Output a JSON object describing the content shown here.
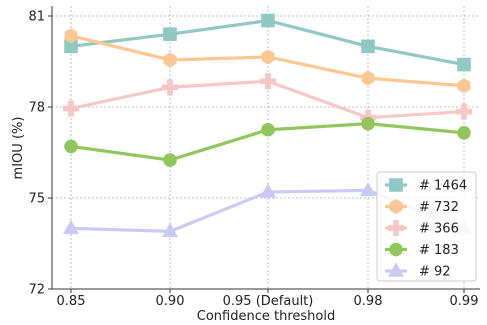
{
  "chart_data": {
    "type": "line",
    "categories": [
      "0.85",
      "0.90",
      "0.95 (Default)",
      "0.98",
      "0.99"
    ],
    "xlabel": "Confidence threshold",
    "ylabel": "mIOU (%)",
    "ylim": [
      72,
      81.5
    ],
    "yticks": [
      "72",
      "75",
      "78",
      "81"
    ],
    "grid": true,
    "legend_position": "bottom-right",
    "series": [
      {
        "name": "# 1464",
        "color": "#92c8c4",
        "marker": "square",
        "values": [
          80.0,
          80.4,
          80.85,
          80.0,
          79.4
        ]
      },
      {
        "name": "# 732",
        "color": "#fbc894",
        "marker": "hexagon",
        "values": [
          80.35,
          79.55,
          79.65,
          78.95,
          78.7
        ]
      },
      {
        "name": "# 366",
        "color": "#f6c7c6",
        "marker": "plus",
        "values": [
          77.95,
          78.65,
          78.85,
          77.65,
          77.85
        ]
      },
      {
        "name": "# 183",
        "color": "#92c65c",
        "marker": "circle",
        "values": [
          76.7,
          76.25,
          77.25,
          77.45,
          77.15
        ]
      },
      {
        "name": "# 92",
        "color": "#c9cbf4",
        "marker": "triangle",
        "values": [
          74.0,
          73.9,
          75.2,
          75.25,
          74.0
        ]
      }
    ]
  }
}
